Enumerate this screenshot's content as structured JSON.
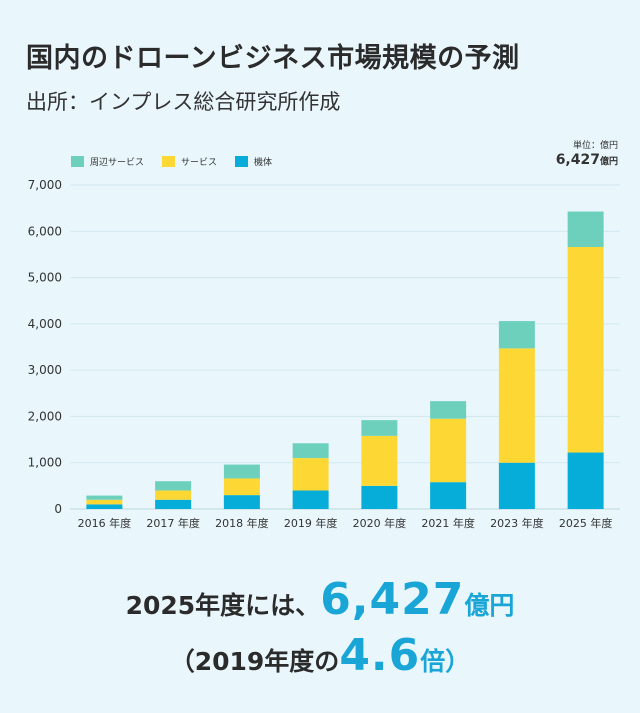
{
  "header": {
    "title": "国内のドローンビジネス市場規模の予測",
    "subtitle": "出所：インプレス総合研究所作成"
  },
  "unit": {
    "label": "単位：億円",
    "total_value": "6,427",
    "total_unit": "億円"
  },
  "colors": {
    "background": "#e9f7fc",
    "peripheral_services": "#6dd0bd",
    "services": "#fdd835",
    "hardware": "#06add8",
    "accent": "#19a6d6",
    "grid": "#cfe7ef"
  },
  "chart_data": {
    "type": "bar",
    "stacked": true,
    "categories": [
      "2016 年度",
      "2017 年度",
      "2018 年度",
      "2019 年度",
      "2020 年度",
      "2021 年度",
      "2023 年度",
      "2025 年度"
    ],
    "series": [
      {
        "name": "機体",
        "values": [
          100,
          200,
          300,
          400,
          500,
          580,
          1000,
          1220
        ]
      },
      {
        "name": "サービス",
        "values": [
          100,
          200,
          360,
          700,
          1080,
          1370,
          2470,
          4440
        ]
      },
      {
        "name": "周辺サービス",
        "values": [
          90,
          200,
          300,
          320,
          340,
          380,
          590,
          767
        ]
      }
    ],
    "ylim": [
      0,
      7000
    ],
    "yticks": [
      "0",
      "1,000",
      "2,000",
      "3,000",
      "4,000",
      "5,000",
      "6,000",
      "7,000"
    ],
    "ytick_values": [
      0,
      1000,
      2000,
      3000,
      4000,
      5000,
      6000,
      7000
    ],
    "grid": true,
    "legend": "top-left",
    "legend_order": [
      "周辺サービス",
      "サービス",
      "機体"
    ]
  },
  "summary": {
    "line1_prefix": "2025年度には、",
    "line1_value": "6,427",
    "line1_unit": "億円",
    "line2_prefix": "（2019年度の",
    "line2_value": "4.6",
    "line2_suffix": "倍）"
  }
}
